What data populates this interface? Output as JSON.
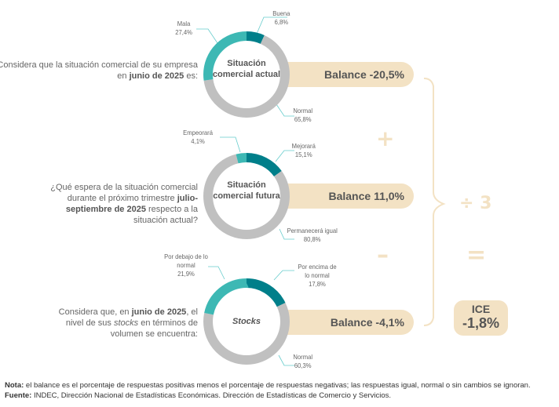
{
  "colors": {
    "positive": "#007f8a",
    "neutral": "#c0c0c0",
    "negative": "#3db8b4",
    "balance": "#f3e2c4"
  },
  "questions": [
    {
      "pre": "Considera que la situación comercial de su empresa en ",
      "bold": "junio de 2025",
      "post": " es:"
    },
    {
      "pre": "¿Qué espera de la situación comercial durante el próximo trimestre ",
      "bold": "julio-septiembre de 2025",
      "post": " respecto a la situación actual?"
    },
    {
      "pre": "Considera que, en ",
      "bold": "junio de 2025",
      "mid": ", el nivel de sus ",
      "ital": "stocks",
      "post": " en términos de volumen se encuentra:"
    }
  ],
  "donuts": [
    {
      "center": "Situación comercial actual",
      "balance": "Balance  -20,5%",
      "segments": [
        {
          "label": "Buena",
          "value": 6.8,
          "text": "6,8%"
        },
        {
          "label": "Normal",
          "value": 65.8,
          "text": "65,8%"
        },
        {
          "label": "Mala",
          "value": 27.4,
          "text": "27,4%"
        }
      ]
    },
    {
      "center": "Situación comercial futura",
      "balance": "Balance  11,0%",
      "segments": [
        {
          "label": "Mejorará",
          "value": 15.1,
          "text": "15,1%"
        },
        {
          "label": "Permanecerá igual",
          "value": 80.8,
          "text": "80,8%"
        },
        {
          "label": "Empeorará",
          "value": 4.1,
          "text": "4,1%"
        }
      ]
    },
    {
      "center": "Stocks",
      "balance": "Balance  -4,1%",
      "segments": [
        {
          "label": "Por encima de lo normal",
          "value": 17.8,
          "text": "17,8%"
        },
        {
          "label": "Normal",
          "value": 60.3,
          "text": "60,3%"
        },
        {
          "label": "Por debajo de lo normal",
          "value": 21.9,
          "text": "21,9%"
        }
      ]
    }
  ],
  "operators": {
    "plus": "+",
    "minus": "–",
    "divide": "÷ 3",
    "equals": "="
  },
  "ice": {
    "label": "ICE",
    "value": "-1,8%"
  },
  "footer": {
    "note_label": "Nota:",
    "note": " el balance es el porcentaje de respuestas positivas menos el porcentaje de respuestas negativas; las respuestas igual, normal o sin cambios se ignoran.",
    "source_label": "Fuente:",
    "source": " INDEC, Dirección Nacional de Estadísticas Económicas. Dirección de Estadísticas de Comercio y Servicios."
  }
}
